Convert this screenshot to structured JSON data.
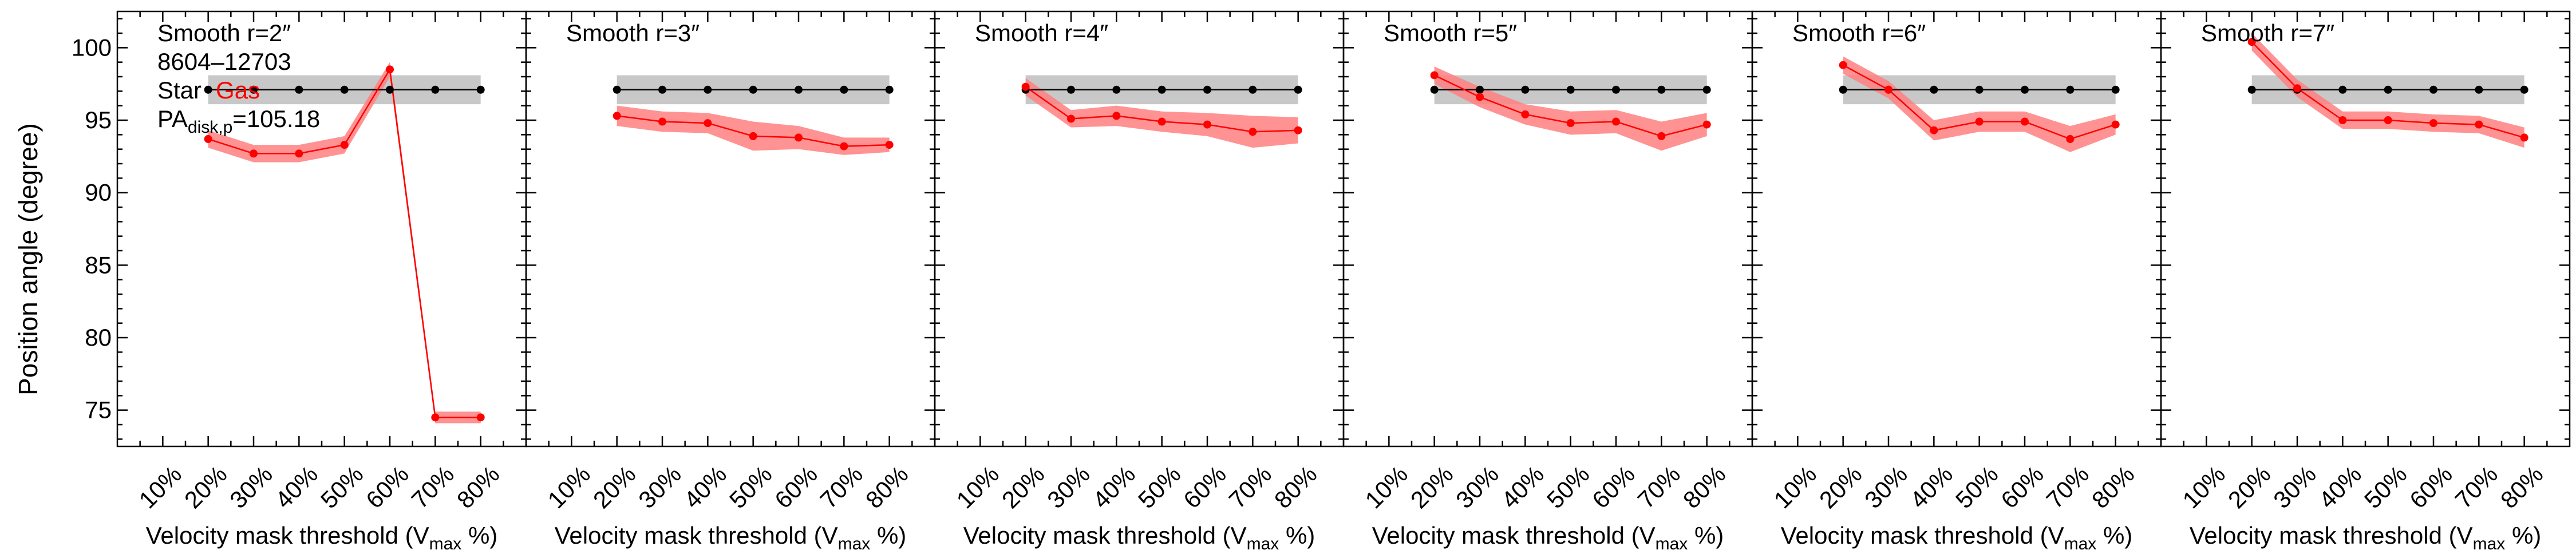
{
  "chart_data": {
    "type": "line",
    "ylabel": "Position angle (degree)",
    "xlabel": "Velocity mask threshold (V",
    "xlabel_sub": "max",
    "xlabel_tail": " %)",
    "x_tick_labels": [
      "10%",
      "20%",
      "30%",
      "40%",
      "50%",
      "60%",
      "70%",
      "80%"
    ],
    "x_tick_values": [
      10,
      20,
      30,
      40,
      50,
      60,
      70,
      80
    ],
    "xlim": [
      0,
      90
    ],
    "ylim": [
      72.5,
      102.5
    ],
    "y_ticks": [
      75,
      80,
      85,
      90,
      95,
      100
    ],
    "colors": {
      "star": "#000000",
      "gas": "#ff0000",
      "gas_band": "#ff8080",
      "star_band": "#c8c8c8"
    },
    "annotation": {
      "object_id": "8604–12703",
      "star_label": "Star",
      "gas_label": "Gas",
      "pa_prefix": "PA",
      "pa_sub": "disk,p",
      "pa_value": "=105.18"
    },
    "panels": [
      {
        "title": "Smooth r=2″",
        "star": {
          "x": [
            20,
            30,
            40,
            50,
            60,
            70,
            80
          ],
          "y": [
            97.1,
            97.1,
            97.1,
            97.1,
            97.1,
            97.1,
            97.1
          ],
          "err": 1.0
        },
        "gas": {
          "x": [
            20,
            30,
            40,
            50,
            60,
            70,
            80
          ],
          "y": [
            93.7,
            92.7,
            92.7,
            93.3,
            98.5,
            74.5,
            74.5
          ],
          "err": [
            0.6,
            0.6,
            0.6,
            0.6,
            0.5,
            0.4,
            0.4
          ]
        }
      },
      {
        "title": "Smooth r=3″",
        "star": {
          "x": [
            20,
            30,
            40,
            50,
            60,
            70,
            80
          ],
          "y": [
            97.1,
            97.1,
            97.1,
            97.1,
            97.1,
            97.1,
            97.1
          ],
          "err": 1.0
        },
        "gas": {
          "x": [
            20,
            30,
            40,
            50,
            60,
            70,
            80
          ],
          "y": [
            95.3,
            94.9,
            94.8,
            93.9,
            93.8,
            93.2,
            93.3
          ],
          "err": [
            0.7,
            0.7,
            0.7,
            1.0,
            0.8,
            0.6,
            0.5
          ]
        }
      },
      {
        "title": "Smooth r=4″",
        "star": {
          "x": [
            20,
            30,
            40,
            50,
            60,
            70,
            80
          ],
          "y": [
            97.1,
            97.1,
            97.1,
            97.1,
            97.1,
            97.1,
            97.1
          ],
          "err": 1.0
        },
        "gas": {
          "x": [
            20,
            30,
            40,
            50,
            60,
            70,
            80
          ],
          "y": [
            97.3,
            95.1,
            95.3,
            94.9,
            94.7,
            94.2,
            94.3
          ],
          "err": [
            0.6,
            0.6,
            0.7,
            0.7,
            0.8,
            1.1,
            0.9
          ]
        }
      },
      {
        "title": "Smooth r=5″",
        "star": {
          "x": [
            20,
            30,
            40,
            50,
            60,
            70,
            80
          ],
          "y": [
            97.1,
            97.1,
            97.1,
            97.1,
            97.1,
            97.1,
            97.1
          ],
          "err": 1.0
        },
        "gas": {
          "x": [
            20,
            30,
            40,
            50,
            60,
            70,
            80
          ],
          "y": [
            98.1,
            96.6,
            95.4,
            94.8,
            94.9,
            93.9,
            94.7
          ],
          "err": [
            0.6,
            0.7,
            0.7,
            0.8,
            0.8,
            1.0,
            0.8
          ]
        }
      },
      {
        "title": "Smooth r=6″",
        "star": {
          "x": [
            20,
            30,
            40,
            50,
            60,
            70,
            80
          ],
          "y": [
            97.1,
            97.1,
            97.1,
            97.1,
            97.1,
            97.1,
            97.1
          ],
          "err": 1.0
        },
        "gas": {
          "x": [
            20,
            30,
            40,
            50,
            60,
            70,
            80
          ],
          "y": [
            98.8,
            97.1,
            94.3,
            94.9,
            94.9,
            93.7,
            94.7
          ],
          "err": [
            0.6,
            0.6,
            0.7,
            0.7,
            0.7,
            0.9,
            0.7
          ]
        }
      },
      {
        "title": "Smooth r=7″",
        "star": {
          "x": [
            20,
            30,
            40,
            50,
            60,
            70,
            80
          ],
          "y": [
            97.1,
            97.1,
            97.1,
            97.1,
            97.1,
            97.1,
            97.1
          ],
          "err": 1.0
        },
        "gas": {
          "x": [
            20,
            30,
            40,
            50,
            60,
            70,
            80
          ],
          "y": [
            100.4,
            97.2,
            95.0,
            95.0,
            94.8,
            94.7,
            93.8
          ],
          "err": [
            0.6,
            0.6,
            0.6,
            0.6,
            0.6,
            0.6,
            0.7
          ]
        }
      }
    ]
  }
}
